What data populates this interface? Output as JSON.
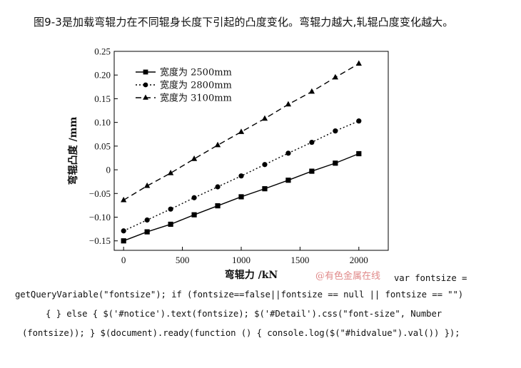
{
  "caption": "图9-3是加载弯辊力在不同辊身长度下引起的凸度变化。弯辊力越大,轧辊凸度变化越大。",
  "watermark": "@有色金属在线",
  "code_lines": [
    "var fontsize =",
    "getQueryVariable(\"fontsize\"); if (fontsize==false||fontsize == null || fontsize == \"\")",
    "{ } else { $('#notice').text(fontsize); $('#Detail').css(\"font-size\", Number",
    "(fontsize)); } $(document).ready(function () { console.log($(\"#hidvalue\").val()) });"
  ],
  "chart_data": {
    "type": "line",
    "xlabel": "弯辊力 /kN",
    "ylabel": "弯辊凸度 /mm",
    "xlim": [
      -80,
      2250
    ],
    "ylim": [
      -0.17,
      0.25
    ],
    "x_ticks": [
      0,
      500,
      1000,
      1500,
      2000
    ],
    "x_tick_labels": [
      "0",
      "500",
      "1000",
      "1500",
      "2000"
    ],
    "y_ticks": [
      -0.15,
      -0.1,
      -0.05,
      0,
      0.05,
      0.1,
      0.15,
      0.2,
      0.25
    ],
    "y_tick_labels": [
      "−0.15",
      "−0.10",
      "−0.05",
      "0",
      "0.05",
      "0.10",
      "0.15",
      "0.20",
      "0.25"
    ],
    "grid": false,
    "legend_position": "top-left",
    "x": [
      0,
      200,
      400,
      600,
      800,
      1000,
      1200,
      1400,
      1600,
      1800,
      2000
    ],
    "series": [
      {
        "name": "宽度为 2500mm",
        "marker": "square",
        "line": "solid",
        "color": "#000000",
        "values": [
          -0.15,
          -0.131,
          -0.115,
          -0.095,
          -0.076,
          -0.057,
          -0.04,
          -0.022,
          -0.003,
          0.014,
          0.034
        ]
      },
      {
        "name": "宽度为 2800mm",
        "marker": "circle",
        "line": "dotted",
        "color": "#000000",
        "values": [
          -0.129,
          -0.106,
          -0.083,
          -0.059,
          -0.036,
          -0.013,
          0.011,
          0.035,
          0.058,
          0.082,
          0.103
        ]
      },
      {
        "name": "宽度为 3100mm",
        "marker": "triangle",
        "line": "dashed",
        "color": "#000000",
        "values": [
          -0.064,
          -0.034,
          -0.007,
          0.023,
          0.052,
          0.08,
          0.108,
          0.138,
          0.165,
          0.195,
          0.224
        ]
      }
    ]
  }
}
